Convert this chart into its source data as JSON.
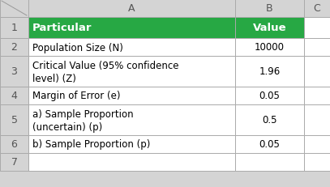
{
  "header_bg": "#27A844",
  "header_text_color": "#FFFFFF",
  "cell_bg": "#FFFFFF",
  "border_color": "#AAAAAA",
  "outer_bg": "#D4D4D4",
  "header_row": [
    "Particular",
    "Value"
  ],
  "rows": [
    [
      "Population Size (N)",
      "10000"
    ],
    [
      "Critical Value (95% confidence\nlevel) (Z)",
      "1.96"
    ],
    [
      "Margin of Error (e)",
      "0.05"
    ],
    [
      "a) Sample Proportion\n(uncertain) (p)",
      "0.5"
    ],
    [
      "b) Sample Proportion (p)",
      "0.05"
    ]
  ],
  "row_numbers": [
    "1",
    "2",
    "3",
    "4",
    "5",
    "6",
    "7"
  ],
  "col_labels": [
    "A",
    "B",
    "C"
  ],
  "font_size": 8.5,
  "header_font_size": 9.5,
  "col_label_fontsize": 9.0,
  "row_num_fontsize": 9.0,
  "fig_width": 4.07,
  "fig_height": 2.32,
  "dpi": 100
}
